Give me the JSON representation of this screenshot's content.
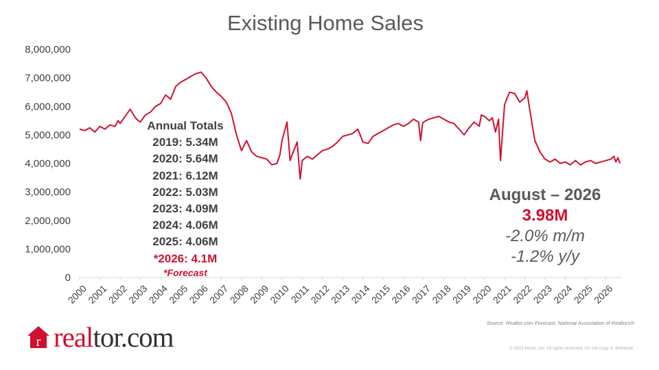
{
  "chart_data": {
    "type": "line",
    "title": "Existing Home Sales",
    "ylim": [
      0,
      8000000
    ],
    "y_ticks": [
      "8,000,000",
      "7,000,000",
      "6,000,000",
      "5,000,000",
      "4,000,000",
      "3,000,000",
      "2,000,000",
      "1,000,000",
      "0"
    ],
    "x_ticks": [
      "2000",
      "2001",
      "2002",
      "2003",
      "2004",
      "2005",
      "2006",
      "2007",
      "2008",
      "2009",
      "2010",
      "2011",
      "2012",
      "2013",
      "2014",
      "2015",
      "2016",
      "2017",
      "2018",
      "2019",
      "2020",
      "2021",
      "2022",
      "2023",
      "2024",
      "2025",
      "2026"
    ],
    "grid": false,
    "line_color": "#d0102f",
    "series": [
      {
        "x": [
          2000.0,
          2000.25,
          2000.5,
          2000.75,
          2001.0,
          2001.25,
          2001.5,
          2001.75,
          2001.9,
          2002.0,
          2002.5,
          2002.75,
          2002.9,
          2003.0,
          2003.25,
          2003.5,
          2003.75,
          2004.0,
          2004.25,
          2004.5,
          2004.75,
          2005.0,
          2005.25,
          2005.5,
          2005.75,
          2006.0,
          2006.25,
          2006.5,
          2006.75,
          2007.0,
          2007.25,
          2007.5,
          2007.75,
          2008.0,
          2008.25,
          2008.5,
          2008.75,
          2009.0,
          2009.25,
          2009.5,
          2009.75,
          2009.9,
          2010.0,
          2010.25,
          2010.4,
          2010.5,
          2010.75,
          2010.9,
          2011.0,
          2011.25,
          2011.5,
          2011.75,
          2012.0,
          2012.25,
          2012.5,
          2012.75,
          2013.0,
          2013.25,
          2013.5,
          2013.75,
          2014.0,
          2014.25,
          2014.5,
          2014.75,
          2015.0,
          2015.25,
          2015.5,
          2015.75,
          2016.0,
          2016.25,
          2016.5,
          2016.75,
          2016.85,
          2016.95,
          2017.0,
          2017.25,
          2017.5,
          2017.75,
          2018.0,
          2018.25,
          2018.5,
          2018.75,
          2019.0,
          2019.25,
          2019.5,
          2019.75,
          2019.85,
          2020.0,
          2020.25,
          2020.4,
          2020.55,
          2020.7,
          2020.8,
          2020.95,
          2021.0,
          2021.1,
          2021.25,
          2021.5,
          2021.75,
          2022.0,
          2022.1,
          2022.25,
          2022.5,
          2022.75,
          2023.0,
          2023.25,
          2023.5,
          2023.75,
          2024.0,
          2024.25,
          2024.5,
          2024.75,
          2025.0,
          2025.25,
          2025.5,
          2025.75,
          2026.0,
          2026.25,
          2026.4,
          2026.5,
          2026.6,
          2026.7
        ],
        "y": [
          5200000,
          5150000,
          5250000,
          5100000,
          5300000,
          5200000,
          5350000,
          5300000,
          5500000,
          5400000,
          5900000,
          5600000,
          5500000,
          5450000,
          5700000,
          5800000,
          6000000,
          6100000,
          6400000,
          6250000,
          6700000,
          6850000,
          6950000,
          7050000,
          7150000,
          7200000,
          7000000,
          6700000,
          6500000,
          6350000,
          6150000,
          5750000,
          5000000,
          4450000,
          4800000,
          4400000,
          4250000,
          4200000,
          4150000,
          3950000,
          4000000,
          4300000,
          4800000,
          5450000,
          4100000,
          4300000,
          4750000,
          3450000,
          4100000,
          4250000,
          4150000,
          4300000,
          4450000,
          4500000,
          4600000,
          4750000,
          4950000,
          5000000,
          5050000,
          5200000,
          4750000,
          4700000,
          4950000,
          5050000,
          5150000,
          5250000,
          5350000,
          5400000,
          5300000,
          5400000,
          5550000,
          5450000,
          4800000,
          5400000,
          5450000,
          5550000,
          5600000,
          5650000,
          5550000,
          5450000,
          5400000,
          5200000,
          5000000,
          5250000,
          5450000,
          5300000,
          5700000,
          5650000,
          5500000,
          5600000,
          5100000,
          5550000,
          4100000,
          5600000,
          6050000,
          6250000,
          6500000,
          6450000,
          6150000,
          6300000,
          6550000,
          5850000,
          4800000,
          4400000,
          4150000,
          4050000,
          4150000,
          4000000,
          4050000,
          3950000,
          4100000,
          3950000,
          4050000,
          4100000,
          4000000,
          4050000,
          4100000,
          4150000,
          4250000,
          4050000,
          4200000,
          4000000
        ]
      }
    ],
    "annual_totals": {
      "heading": "Annual Totals",
      "lines": [
        "2019: 5.34M",
        "2020: 5.64M",
        "2021: 6.12M",
        "2022: 5.03M",
        "2023: 4.09M",
        "2024: 4.06M",
        "2025: 4.06M"
      ],
      "forecast_line": "*2026: 4.1M",
      "forecast_note": "*Forecast"
    },
    "callout": {
      "period": "August – 2026",
      "value": "3.98M",
      "mom": "-2.0%  m/m",
      "yoy": "-1.2%  y/y"
    }
  },
  "source": "Source: Realtor.com Forecast, National Association of Realtors®",
  "copyright": "© 2023 Move, Inc. All rights reserved. Do not copy or distribute.",
  "logo": {
    "part1": "real",
    "part2": "tor.com",
    "icon": "realtor-r-house-icon"
  },
  "colors": {
    "accent": "#d0102f",
    "text": "#595959"
  }
}
